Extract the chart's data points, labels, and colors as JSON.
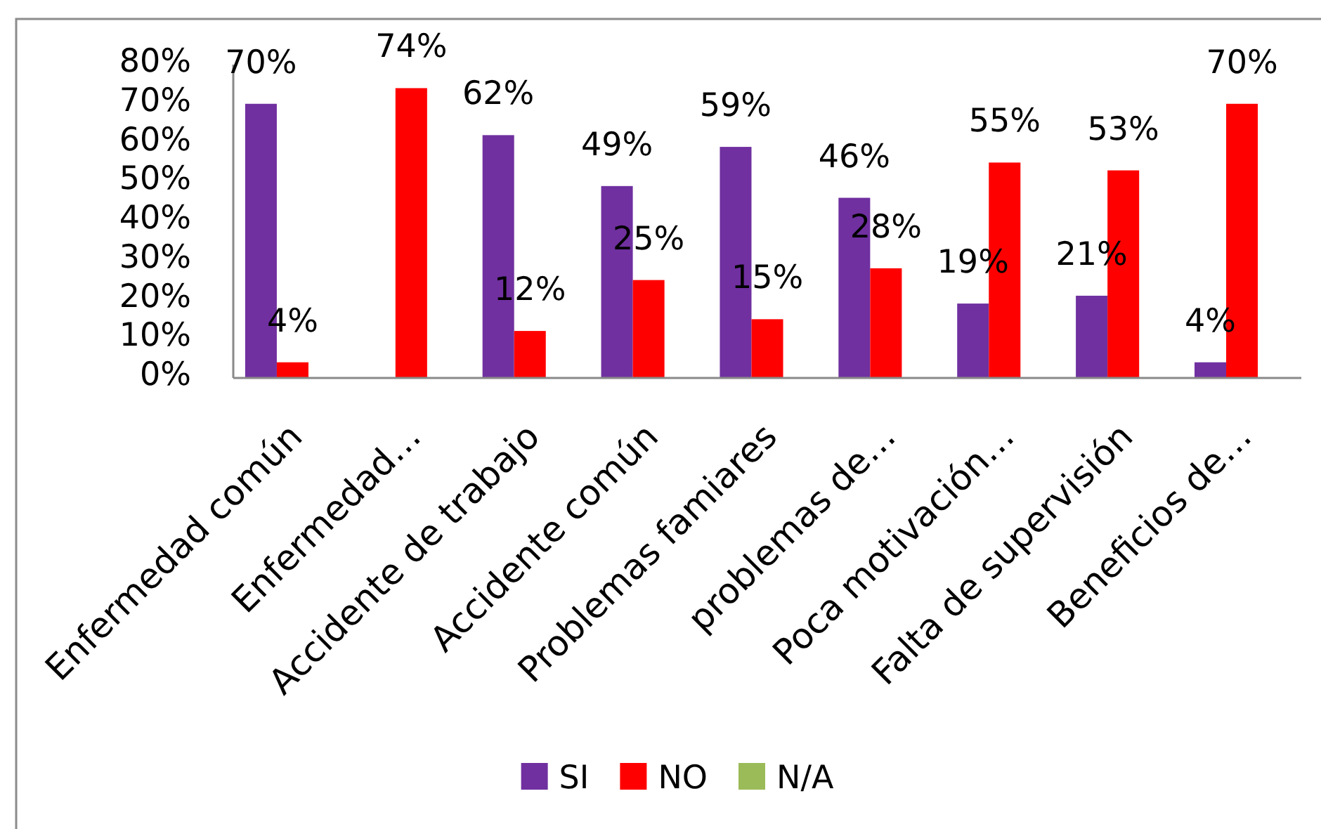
{
  "chart_data": {
    "type": "bar",
    "categories": [
      "Enfermedad común",
      "Enfermedad…",
      "Accidente de trabajo",
      "Accidente común",
      "Problemas famiares",
      "problemas de…",
      "Poca motivación…",
      "Falta de supervisión",
      "Beneficios de…"
    ],
    "series": [
      {
        "name": "SI",
        "color": "#7030a0",
        "values": [
          70,
          null,
          62,
          49,
          59,
          46,
          19,
          21,
          4
        ],
        "value_labels": [
          "70%",
          null,
          "62%",
          "49%",
          "59%",
          "46%",
          "19%",
          "21%",
          "4%"
        ]
      },
      {
        "name": "NO",
        "color": "#ff0000",
        "values": [
          4,
          74,
          12,
          25,
          15,
          28,
          55,
          53,
          70
        ],
        "value_labels": [
          "4%",
          "74%",
          "12%",
          "25%",
          "15%",
          "28%",
          "55%",
          "53%",
          "70%"
        ]
      },
      {
        "name": "N/A",
        "color": "#9bbb59",
        "values": [
          null,
          null,
          null,
          null,
          null,
          null,
          null,
          null,
          null
        ]
      }
    ],
    "ylim": [
      0,
      80
    ],
    "yticks": [
      {
        "value": 0,
        "label": "0%"
      },
      {
        "value": 10,
        "label": "10%"
      },
      {
        "value": 20,
        "label": "20%"
      },
      {
        "value": 30,
        "label": "30%"
      },
      {
        "value": 40,
        "label": "40%"
      },
      {
        "value": 50,
        "label": "50%"
      },
      {
        "value": 60,
        "label": "60%"
      },
      {
        "value": 70,
        "label": "70%"
      },
      {
        "value": 80,
        "label": "80%"
      }
    ],
    "legend": "bottom"
  }
}
